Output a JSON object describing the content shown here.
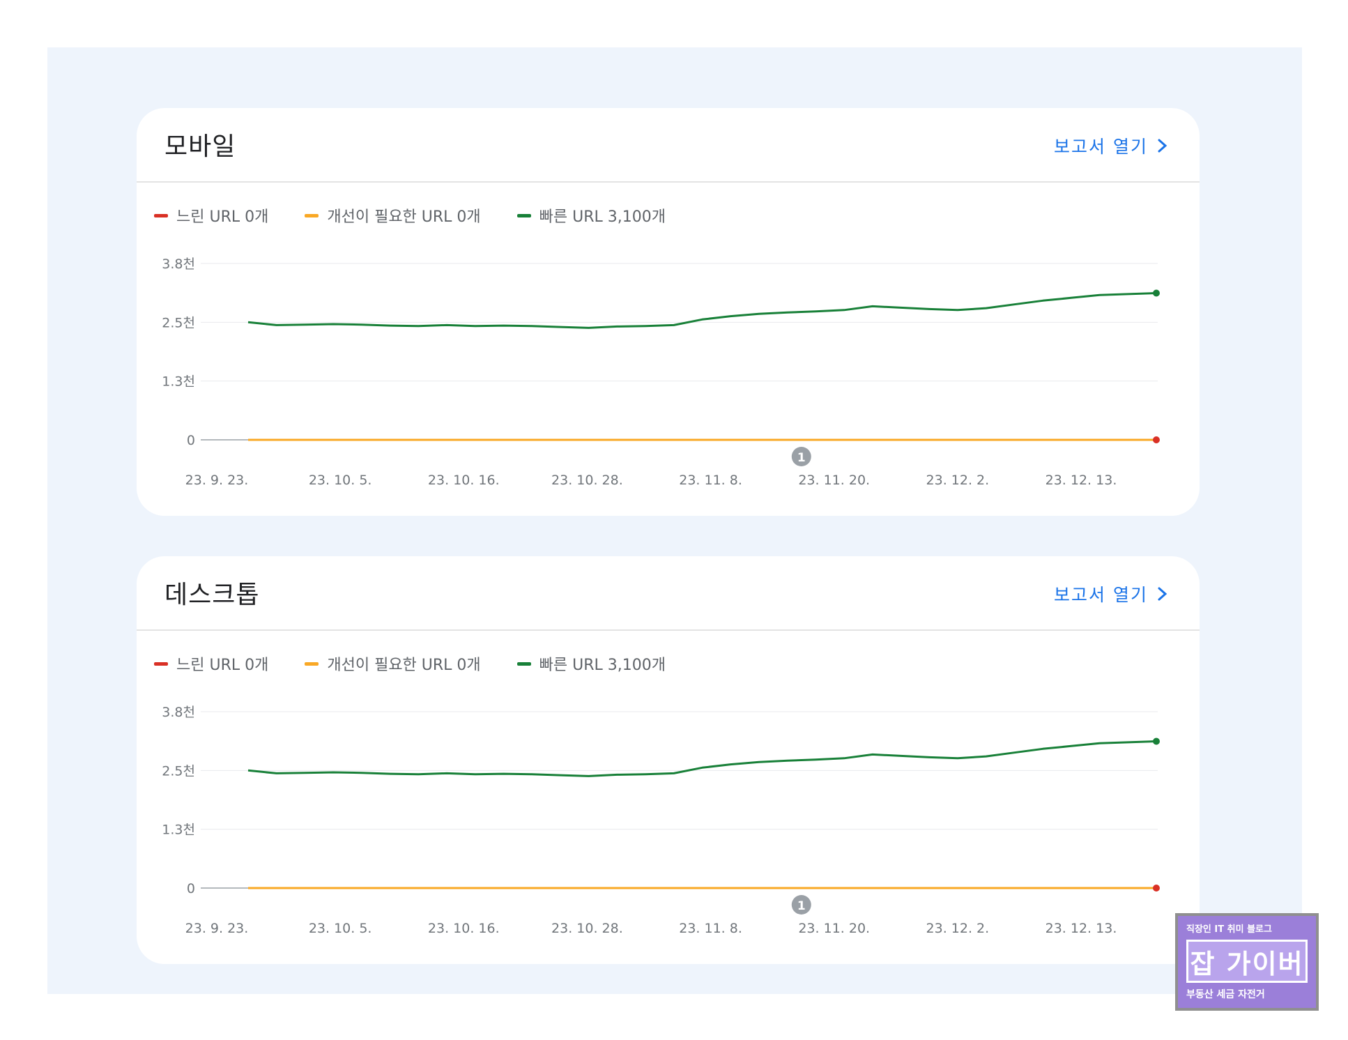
{
  "cards": [
    {
      "title": "모바일",
      "report_link": "보고서 열기",
      "legend": [
        {
          "label": "느린 URL 0개",
          "color": "#d93025"
        },
        {
          "label": "개선이 필요한 URL 0개",
          "color": "#f9a825"
        },
        {
          "label": "빠른 URL 3,100개",
          "color": "#188038"
        }
      ]
    },
    {
      "title": "데스크톱",
      "report_link": "보고서 열기",
      "legend": [
        {
          "label": "느린 URL 0개",
          "color": "#d93025"
        },
        {
          "label": "개선이 필요한 URL 0개",
          "color": "#f9a825"
        },
        {
          "label": "빠른 URL 3,100개",
          "color": "#188038"
        }
      ]
    }
  ],
  "chart_data": [
    {
      "type": "line",
      "y_ticks": [
        "0",
        "1.3천",
        "2.5천",
        "3.8천"
      ],
      "y_tick_values": [
        0,
        1250,
        2500,
        3750
      ],
      "ylim": [
        0,
        3750
      ],
      "x_ticks": [
        "23. 9. 23.",
        "23. 10. 5.",
        "23. 10. 16.",
        "23. 10. 28.",
        "23. 11. 8.",
        "23. 11. 20.",
        "23. 12. 2.",
        "23. 12. 13."
      ],
      "x_range": [
        "2023-09-26",
        "2023-12-22"
      ],
      "annotation": {
        "label": "1",
        "date": "2023-11-18"
      },
      "series": [
        {
          "name": "빠른 URL",
          "color": "#188038",
          "values": [
            2500,
            2440,
            2450,
            2460,
            2450,
            2430,
            2420,
            2440,
            2420,
            2430,
            2420,
            2400,
            2380,
            2410,
            2420,
            2440,
            2560,
            2630,
            2680,
            2710,
            2730,
            2760,
            2840,
            2810,
            2780,
            2760,
            2800,
            2880,
            2960,
            3020,
            3080,
            3100,
            3120
          ]
        },
        {
          "name": "느린 URL",
          "color": "#d93025",
          "values": [
            0,
            0
          ]
        },
        {
          "name": "개선이 필요한 URL",
          "color": "#f9a825",
          "values": [
            0,
            0
          ]
        }
      ]
    },
    {
      "type": "line",
      "y_ticks": [
        "0",
        "1.3천",
        "2.5천",
        "3.8천"
      ],
      "y_tick_values": [
        0,
        1250,
        2500,
        3750
      ],
      "ylim": [
        0,
        3750
      ],
      "x_ticks": [
        "23. 9. 23.",
        "23. 10. 5.",
        "23. 10. 16.",
        "23. 10. 28.",
        "23. 11. 8.",
        "23. 11. 20.",
        "23. 12. 2.",
        "23. 12. 13."
      ],
      "x_range": [
        "2023-09-26",
        "2023-12-22"
      ],
      "annotation": {
        "label": "1",
        "date": "2023-11-18"
      },
      "series": [
        {
          "name": "빠른 URL",
          "color": "#188038",
          "values": [
            2500,
            2440,
            2450,
            2460,
            2450,
            2430,
            2420,
            2440,
            2420,
            2430,
            2420,
            2400,
            2380,
            2410,
            2420,
            2440,
            2560,
            2630,
            2680,
            2710,
            2730,
            2760,
            2840,
            2810,
            2780,
            2760,
            2800,
            2880,
            2960,
            3020,
            3080,
            3100,
            3120
          ]
        },
        {
          "name": "느린 URL",
          "color": "#d93025",
          "values": [
            0,
            0
          ]
        },
        {
          "name": "개선이 필요한 URL",
          "color": "#f9a825",
          "values": [
            0,
            0
          ]
        }
      ]
    }
  ],
  "badge": {
    "top": "직장인 IT 취미 블로그",
    "main": "잡 가이버",
    "bottom": "부동산 세금 자전거"
  }
}
